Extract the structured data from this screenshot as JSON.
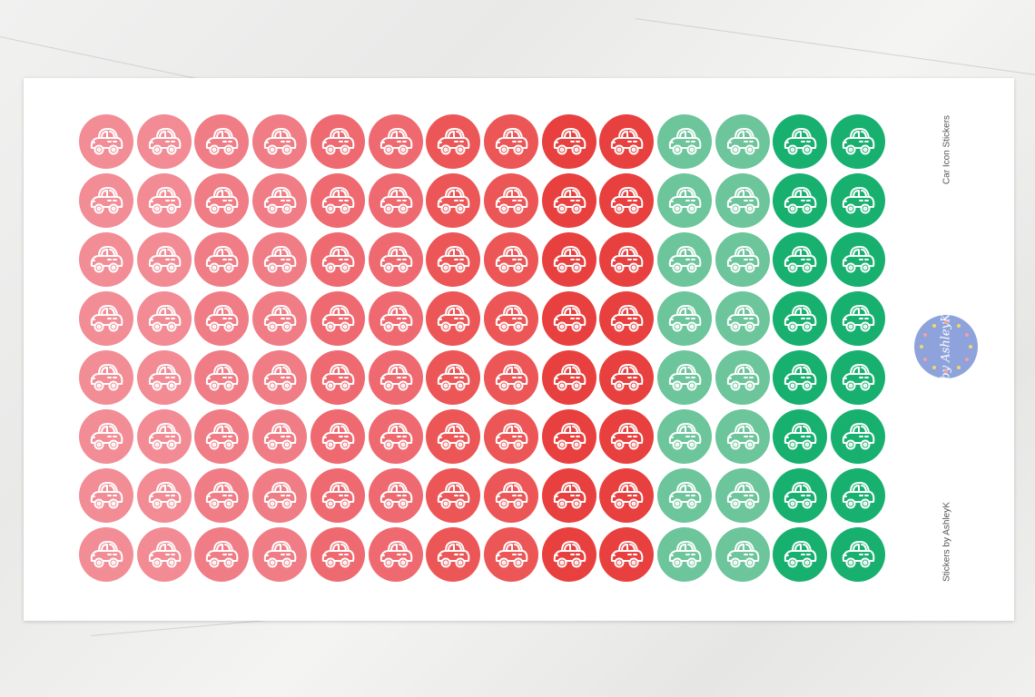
{
  "sheet": {
    "title": "Car Icon Stickers",
    "credit": "Stickers by AshleyK",
    "logo_text": "by AshleyK",
    "sticker_icon": "car-icon",
    "rows": 8,
    "column_colors": [
      "#f28d96",
      "#f28b94",
      "#f07d85",
      "#f07d85",
      "#ee6a70",
      "#ee6a70",
      "#ec5656",
      "#ec5656",
      "#e8403e",
      "#e8403e",
      "#6cc59b",
      "#6cc59b",
      "#17b06f",
      "#17b06f"
    ],
    "logo_color": "#8ea3db"
  }
}
